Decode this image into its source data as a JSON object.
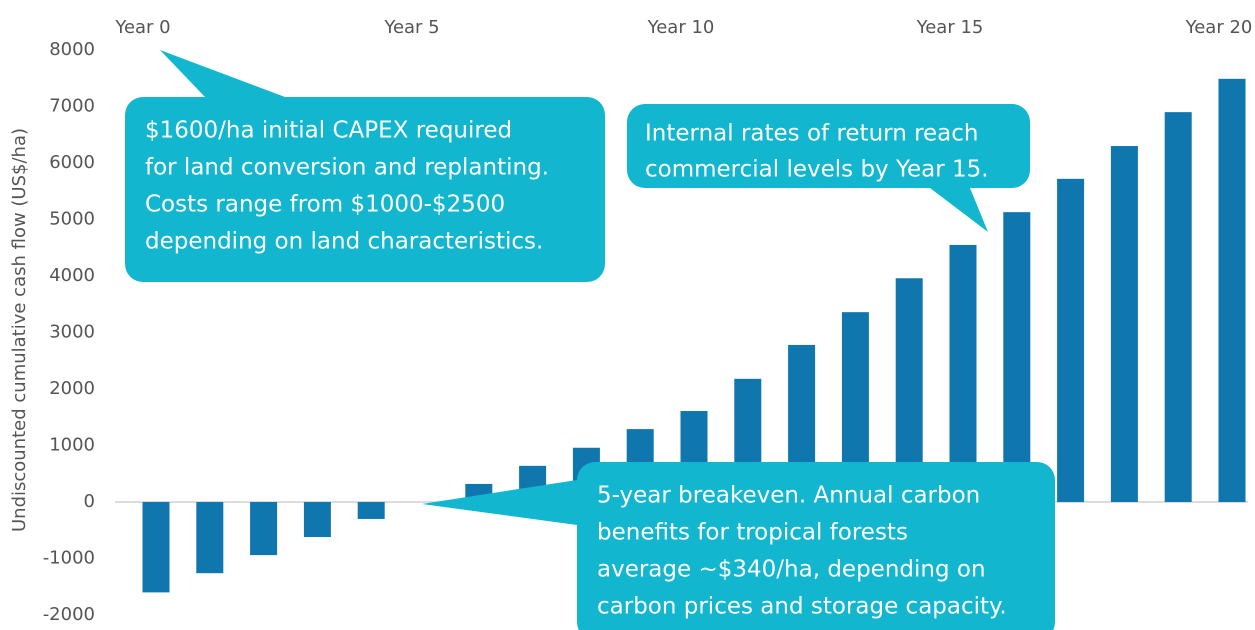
{
  "chart_data": {
    "type": "bar",
    "y_label": "Undiscounted cumulative cash flow (US$/ha)",
    "categories": [
      "Year 0",
      null,
      null,
      null,
      null,
      "Year 5",
      null,
      null,
      null,
      null,
      "Year 10",
      null,
      null,
      null,
      null,
      "Year 15",
      null,
      null,
      null,
      null,
      "Year 20"
    ],
    "values": [
      -1600,
      -1260,
      -940,
      -620,
      -300,
      0,
      320,
      640,
      960,
      1290,
      1610,
      2180,
      2780,
      3360,
      3960,
      4550,
      5130,
      5720,
      6300,
      6900,
      7490
    ],
    "color": "#0f76ae",
    "ylim": [
      -2000,
      8000
    ],
    "yticks": [
      -2000,
      -1000,
      0,
      1000,
      2000,
      3000,
      4000,
      5000,
      6000,
      7000,
      8000
    ],
    "annotations": [
      {
        "lines": [
          "$1600/ha initial CAPEX required",
          "for land conversion and replanting.",
          "Costs range from $1000-$2500",
          "depending on land characteristics."
        ]
      },
      {
        "lines": [
          "Internal rates of return reach",
          "commercial levels by Year 15."
        ]
      },
      {
        "lines": [
          "5-year breakeven. Annual carbon",
          "benefits for tropical forests",
          "average ~$340/ha, depending on",
          "carbon prices and storage capacity."
        ]
      }
    ],
    "annotation_color": "#12b6cf"
  }
}
